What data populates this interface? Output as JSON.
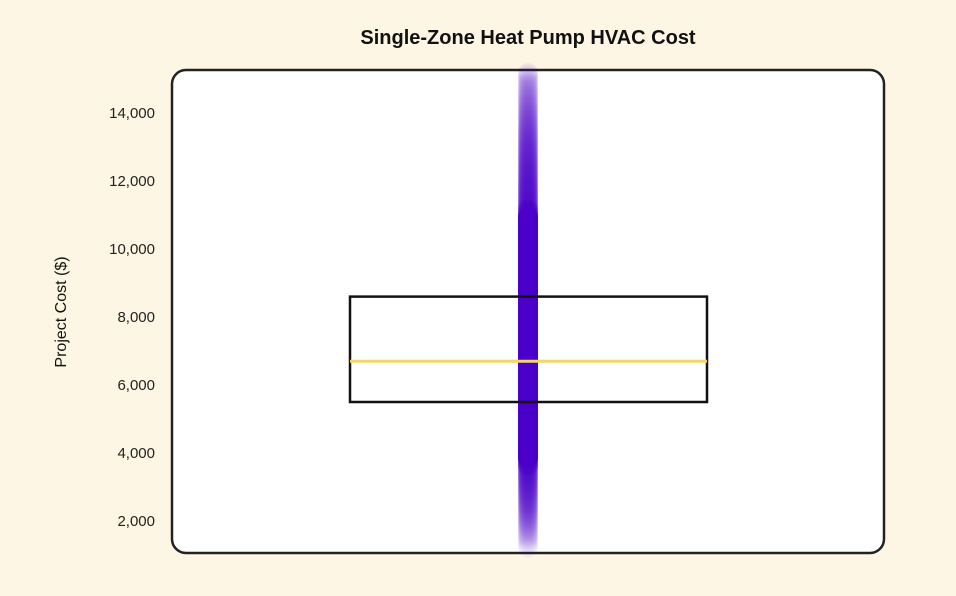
{
  "chart_data": {
    "type": "box",
    "title": "Single-Zone Heat Pump HVAC Cost",
    "xlabel": "",
    "ylabel": "Project Cost ($)",
    "ylim": [
      1050,
      15250
    ],
    "yticks": [
      2000,
      4000,
      6000,
      8000,
      10000,
      12000,
      14000
    ],
    "ytick_labels": [
      "2,000",
      "4,000",
      "6,000",
      "8,000",
      "10,000",
      "12,000",
      "14,000"
    ],
    "box": {
      "q1": 5500,
      "median": 6700,
      "q3": 8600
    },
    "points_range": [
      1200,
      15200
    ],
    "grid": false,
    "colors": {
      "points": "#4a00c8",
      "box": "#111111",
      "median": "#f5d56a",
      "background": "#fdf6e4",
      "panel": "#ffffff"
    }
  }
}
